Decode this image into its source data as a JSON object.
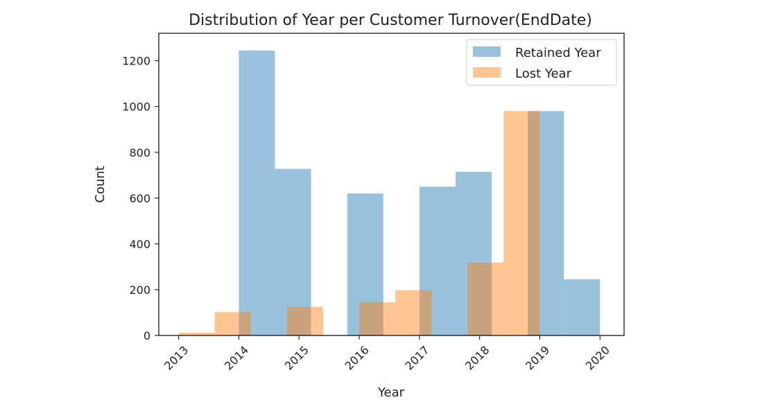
{
  "chart_data": {
    "type": "histogram",
    "title": "Distribution of Year per Customer Turnover(EndDate)",
    "xlabel": "Year",
    "ylabel": "Count",
    "xlim": [
      2012.67,
      2020.4
    ],
    "ylim": [
      0,
      1320
    ],
    "x_ticks": [
      "2013",
      "2014",
      "2015",
      "2016",
      "2017",
      "2018",
      "2019",
      "2020"
    ],
    "x_tick_values": [
      2013,
      2014,
      2015,
      2016,
      2017,
      2018,
      2019,
      2020
    ],
    "y_ticks": [
      0,
      200,
      400,
      600,
      800,
      1000,
      1200
    ],
    "legend_position": "upper right",
    "grid": false,
    "series": [
      {
        "name": "Retained Year",
        "color": "#1f77b4",
        "bins": [
          {
            "x0": 2014.0,
            "x1": 2014.6,
            "value": 1245
          },
          {
            "x0": 2014.6,
            "x1": 2015.2,
            "value": 728
          },
          {
            "x0": 2015.2,
            "x1": 2015.8,
            "value": 0
          },
          {
            "x0": 2015.8,
            "x1": 2016.4,
            "value": 620
          },
          {
            "x0": 2016.4,
            "x1": 2017.0,
            "value": 0
          },
          {
            "x0": 2017.0,
            "x1": 2017.6,
            "value": 650
          },
          {
            "x0": 2017.6,
            "x1": 2018.2,
            "value": 715
          },
          {
            "x0": 2018.2,
            "x1": 2018.8,
            "value": 0
          },
          {
            "x0": 2018.8,
            "x1": 2019.4,
            "value": 980
          },
          {
            "x0": 2019.4,
            "x1": 2020.0,
            "value": 245
          }
        ]
      },
      {
        "name": "Lost Year",
        "color": "#ff7f0e",
        "bins": [
          {
            "x0": 2013.0,
            "x1": 2013.6,
            "value": 12
          },
          {
            "x0": 2013.6,
            "x1": 2014.2,
            "value": 102
          },
          {
            "x0": 2014.2,
            "x1": 2014.8,
            "value": 0
          },
          {
            "x0": 2014.8,
            "x1": 2015.4,
            "value": 125
          },
          {
            "x0": 2015.4,
            "x1": 2016.0,
            "value": 0
          },
          {
            "x0": 2016.0,
            "x1": 2016.6,
            "value": 145
          },
          {
            "x0": 2016.6,
            "x1": 2017.2,
            "value": 198
          },
          {
            "x0": 2017.2,
            "x1": 2017.8,
            "value": 0
          },
          {
            "x0": 2017.8,
            "x1": 2018.4,
            "value": 318
          },
          {
            "x0": 2018.4,
            "x1": 2019.0,
            "value": 980
          }
        ]
      }
    ]
  }
}
